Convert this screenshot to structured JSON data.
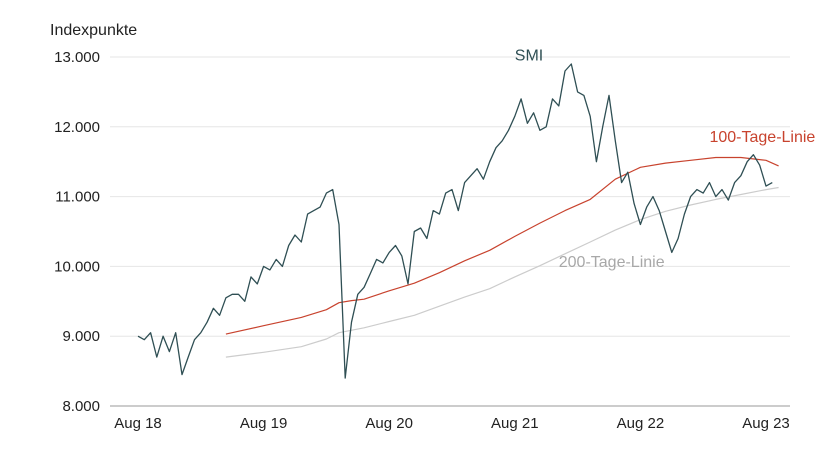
{
  "chart_data": {
    "type": "line",
    "ylabel": "Indexpunkte",
    "ylim": [
      8000,
      13000
    ],
    "yticks": [
      {
        "value": 8000,
        "label": "8.000"
      },
      {
        "value": 9000,
        "label": "9.000"
      },
      {
        "value": 10000,
        "label": "10.000"
      },
      {
        "value": 11000,
        "label": "11.000"
      },
      {
        "value": 12000,
        "label": "12.000"
      },
      {
        "value": 13000,
        "label": "13.000"
      }
    ],
    "xlim": [
      2018.0,
      2023.08
    ],
    "xticks": [
      {
        "value": 2018.0,
        "label": "Aug 18"
      },
      {
        "value": 2019.0,
        "label": "Aug 19"
      },
      {
        "value": 2020.0,
        "label": "Aug 20"
      },
      {
        "value": 2021.0,
        "label": "Aug 21"
      },
      {
        "value": 2022.0,
        "label": "Aug 22"
      },
      {
        "value": 2023.0,
        "label": "Aug 23"
      }
    ],
    "grid": "horizontal",
    "series": [
      {
        "name": "SMI",
        "color": "#2f4f54",
        "x": [
          2018.0,
          2018.05,
          2018.1,
          2018.15,
          2018.2,
          2018.25,
          2018.3,
          2018.35,
          2018.4,
          2018.45,
          2018.5,
          2018.55,
          2018.6,
          2018.65,
          2018.7,
          2018.75,
          2018.8,
          2018.85,
          2018.9,
          2018.95,
          2019.0,
          2019.05,
          2019.1,
          2019.15,
          2019.2,
          2019.25,
          2019.3,
          2019.35,
          2019.4,
          2019.45,
          2019.5,
          2019.55,
          2019.6,
          2019.65,
          2019.7,
          2019.75,
          2019.8,
          2019.85,
          2019.9,
          2019.95,
          2020.0,
          2020.05,
          2020.1,
          2020.15,
          2020.2,
          2020.25,
          2020.3,
          2020.35,
          2020.4,
          2020.45,
          2020.5,
          2020.55,
          2020.6,
          2020.65,
          2020.7,
          2020.75,
          2020.8,
          2020.85,
          2020.9,
          2020.95,
          2021.0,
          2021.05,
          2021.1,
          2021.15,
          2021.2,
          2021.25,
          2021.3,
          2021.35,
          2021.4,
          2021.45,
          2021.5,
          2021.55,
          2021.6,
          2021.65,
          2021.7,
          2021.75,
          2021.8,
          2021.85,
          2021.9,
          2021.95,
          2022.0,
          2022.05,
          2022.1,
          2022.15,
          2022.2,
          2022.25,
          2022.3,
          2022.35,
          2022.4,
          2022.45,
          2022.5,
          2022.55,
          2022.6,
          2022.65,
          2022.7,
          2022.75,
          2022.8,
          2022.85,
          2022.9,
          2022.95,
          2023.0,
          2023.05
        ],
        "values": [
          9000,
          8950,
          9050,
          8700,
          9000,
          8780,
          9050,
          8450,
          8700,
          8950,
          9050,
          9200,
          9400,
          9300,
          9550,
          9600,
          9600,
          9500,
          9850,
          9750,
          10000,
          9950,
          10100,
          10000,
          10300,
          10450,
          10350,
          10750,
          10800,
          10850,
          11050,
          11100,
          10600,
          8400,
          9200,
          9600,
          9700,
          9900,
          10100,
          10050,
          10200,
          10300,
          10150,
          9750,
          10500,
          10550,
          10400,
          10800,
          10750,
          11050,
          11100,
          10800,
          11200,
          11300,
          11400,
          11250,
          11500,
          11700,
          11800,
          11950,
          12150,
          12400,
          12050,
          12200,
          11950,
          12000,
          12400,
          12300,
          12800,
          12900,
          12500,
          12450,
          12150,
          11500,
          12000,
          12450,
          11800,
          11200,
          11350,
          10900,
          10600,
          10850,
          11000,
          10800,
          10500,
          10200,
          10400,
          10750,
          11000,
          11100,
          11050,
          11200,
          11000,
          11100,
          10950,
          11200,
          11300,
          11500,
          11600,
          11450,
          11150,
          11200
        ]
      },
      {
        "name": "100-Tage-Linie",
        "color": "#c8432e",
        "x": [
          2018.7,
          2019.0,
          2019.3,
          2019.5,
          2019.6,
          2019.7,
          2019.8,
          2020.0,
          2020.2,
          2020.4,
          2020.6,
          2020.8,
          2021.0,
          2021.2,
          2021.4,
          2021.6,
          2021.8,
          2022.0,
          2022.2,
          2022.4,
          2022.6,
          2022.8,
          2023.0,
          2023.1
        ],
        "values": [
          9030,
          9150,
          9270,
          9380,
          9480,
          9510,
          9530,
          9650,
          9760,
          9910,
          10080,
          10230,
          10430,
          10620,
          10800,
          10960,
          11250,
          11420,
          11480,
          11520,
          11560,
          11560,
          11520,
          11440
        ]
      },
      {
        "name": "200-Tage-Linie",
        "color": "#cccccc",
        "x": [
          2018.7,
          2019.0,
          2019.3,
          2019.5,
          2019.6,
          2019.8,
          2020.0,
          2020.2,
          2020.4,
          2020.6,
          2020.8,
          2021.0,
          2021.2,
          2021.4,
          2021.6,
          2021.8,
          2022.0,
          2022.2,
          2022.4,
          2022.6,
          2022.8,
          2023.0,
          2023.1
        ],
        "values": [
          8700,
          8770,
          8850,
          8960,
          9050,
          9120,
          9210,
          9300,
          9430,
          9560,
          9680,
          9850,
          10010,
          10180,
          10350,
          10520,
          10670,
          10790,
          10880,
          10960,
          11030,
          11100,
          11130
        ]
      }
    ],
    "annotations": [
      {
        "text": "SMI",
        "color": "#2f4f54",
        "x": 2021.0,
        "y": 12950
      },
      {
        "text": "100-Tage-Linie",
        "color": "#c8432e",
        "x": 2022.55,
        "y": 11780
      },
      {
        "text": "200-Tage-Linie",
        "color": "#a8a8a8",
        "x": 2021.35,
        "y": 9990
      }
    ]
  }
}
